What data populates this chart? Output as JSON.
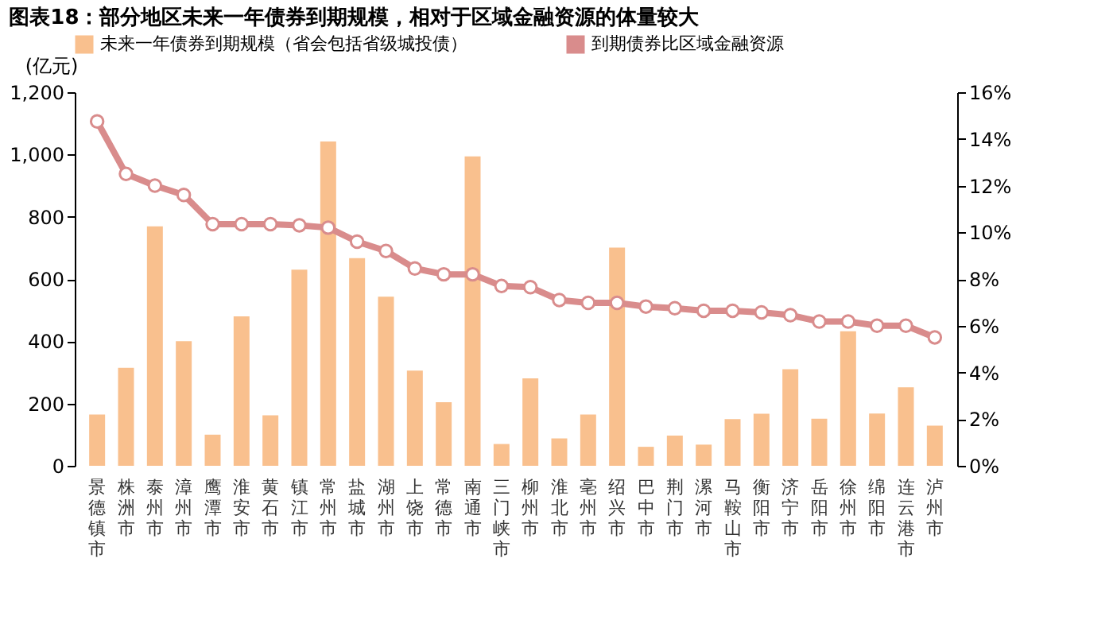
{
  "chart_data": {
    "type": "bar",
    "title": "图表18：部分地区未来一年债券到期规模，相对于区域金融资源的体量较大",
    "ylabel": "(亿元)",
    "categories": [
      "景德镇市",
      "株洲市",
      "泰州市",
      "漳州市",
      "鹰潭市",
      "淮安市",
      "黄石市",
      "镇江市",
      "常州市",
      "盐城市",
      "湖州市",
      "上饶市",
      "常德市",
      "南通市",
      "三门峡市",
      "柳州市",
      "淮北市",
      "亳州市",
      "绍兴市",
      "巴中市",
      "荆门市",
      "漯河市",
      "马鞍山市",
      "衡阳市",
      "济宁市",
      "岳阳市",
      "徐州市",
      "绵阳市",
      "连云港市",
      "泸州市"
    ],
    "series": [
      {
        "name": "未来一年债券到期规模（省会包括省级城投债）",
        "color": "#f9c08e",
        "values": [
          165,
          315,
          769,
          400,
          100,
          480,
          162,
          630,
          1042,
          667,
          543,
          306,
          204,
          994,
          70,
          281,
          88,
          165,
          701,
          61,
          97,
          68,
          150,
          167,
          310,
          151,
          432,
          168,
          252,
          129
        ]
      },
      {
        "name": "到期债券比区域金融资源",
        "type": "line",
        "axis": "y2",
        "color": "#d98c8c",
        "values": [
          14.75,
          12.5,
          12.0,
          11.6,
          10.35,
          10.35,
          10.35,
          10.3,
          10.2,
          9.6,
          9.2,
          8.45,
          8.2,
          8.2,
          7.7,
          7.65,
          7.1,
          6.98,
          6.98,
          6.82,
          6.75,
          6.64,
          6.64,
          6.57,
          6.45,
          6.18,
          6.18,
          6.0,
          6.0,
          5.5
        ]
      }
    ],
    "ylim": [
      0,
      1200
    ],
    "yticks": [
      0,
      200,
      400,
      600,
      800,
      {
        "value": 1000,
        "label": "1,000"
      },
      {
        "value": 1200,
        "label": "1,200"
      }
    ],
    "y2lim": [
      0,
      16
    ],
    "y2ticks": [
      {
        "value": 0,
        "label": "0%"
      },
      {
        "value": 2,
        "label": "2%"
      },
      {
        "value": 4,
        "label": "4%"
      },
      {
        "value": 6,
        "label": "6%"
      },
      {
        "value": 8,
        "label": "8%"
      },
      {
        "value": 10,
        "label": "10%"
      },
      {
        "value": 12,
        "label": "12%"
      },
      {
        "value": 14,
        "label": "14%"
      },
      {
        "value": 16,
        "label": "16%"
      }
    ],
    "marker": "circle",
    "line_style": "solid",
    "grid": false,
    "legend": "top"
  }
}
